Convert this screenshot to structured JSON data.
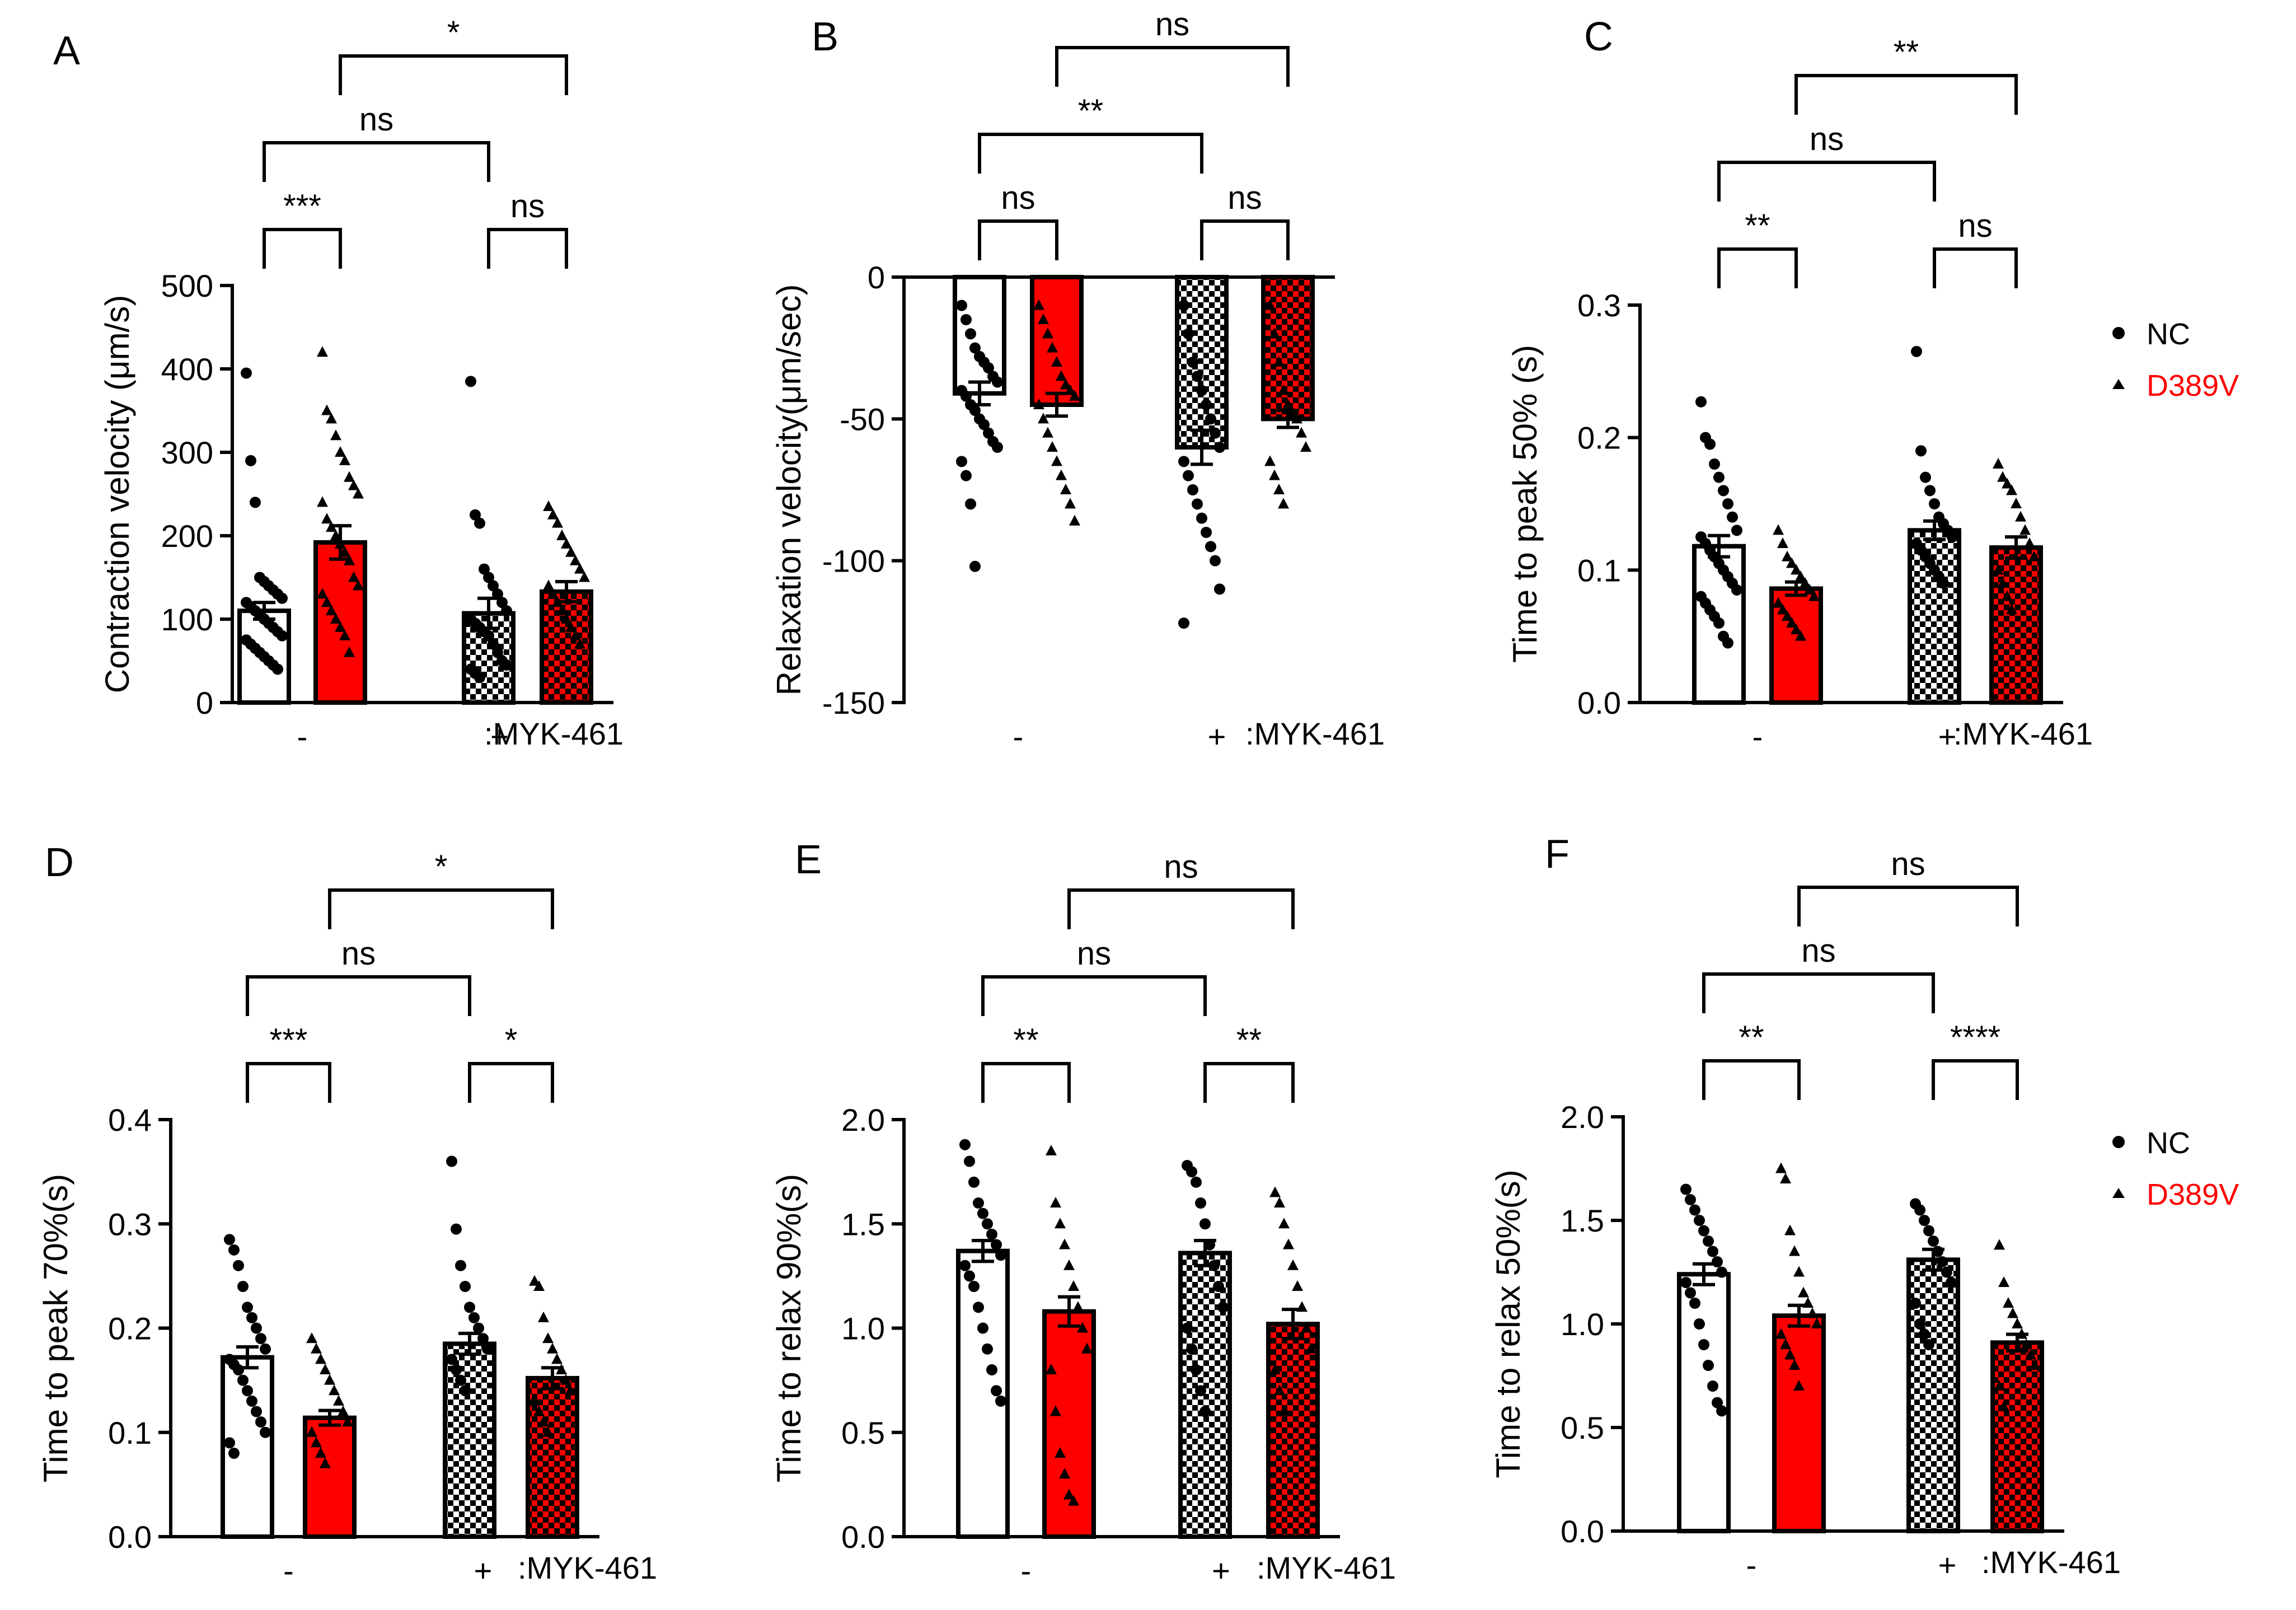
{
  "colors": {
    "nc": "#ffffff",
    "d389v": "#ff0000",
    "legend_d389v_text": "#ff0000",
    "axis": "#000000"
  },
  "legend": {
    "items": [
      {
        "label": "NC",
        "marker": "circle"
      },
      {
        "label": "D389V",
        "marker": "triangle"
      }
    ]
  },
  "chart_data": [
    {
      "panel": "A",
      "type": "bar",
      "ylabel": "Contraction velocity (μm/s)",
      "ylim": [
        0,
        500
      ],
      "yticks": [
        0,
        100,
        200,
        300,
        400,
        500
      ],
      "group_labels": [
        "-",
        "+"
      ],
      "treatment_label": ":MYK-461",
      "series": [
        {
          "name": "NC -",
          "mean": 110,
          "sem": 10,
          "color": "nc",
          "pattern": "solid"
        },
        {
          "name": "D389V -",
          "mean": 192,
          "sem": 20,
          "color": "d389v",
          "pattern": "solid"
        },
        {
          "name": "NC +",
          "mean": 107,
          "sem": 18,
          "color": "nc",
          "pattern": "check"
        },
        {
          "name": "D389V +",
          "mean": 133,
          "sem": 12,
          "color": "d389v",
          "pattern": "check"
        }
      ],
      "points": [
        [
          395,
          290,
          240,
          150,
          145,
          140,
          135,
          130,
          125,
          120,
          115,
          110,
          105,
          100,
          95,
          90,
          85,
          80,
          75,
          70,
          65,
          60,
          55,
          50,
          45,
          40
        ],
        [
          420,
          350,
          340,
          320,
          300,
          290,
          270,
          260,
          250,
          240,
          220,
          210,
          200,
          190,
          180,
          170,
          150,
          140,
          130,
          120,
          110,
          100,
          90,
          80,
          60
        ],
        [
          385,
          225,
          215,
          160,
          150,
          140,
          130,
          120,
          110,
          100,
          95,
          90,
          85,
          80,
          70,
          60,
          50,
          45,
          40,
          35,
          30
        ],
        [
          235,
          225,
          215,
          200,
          190,
          180,
          170,
          160,
          150,
          140,
          130,
          120,
          110,
          100,
          90,
          80,
          70
        ]
      ],
      "comparisons": [
        {
          "from": 0,
          "to": 1,
          "label": "***"
        },
        {
          "from": 2,
          "to": 3,
          "label": "ns"
        },
        {
          "from": 0,
          "to": 2,
          "label": "ns"
        },
        {
          "from": 1,
          "to": 3,
          "label": "*"
        }
      ]
    },
    {
      "panel": "B",
      "type": "bar",
      "ylabel": "Relaxation velocity(μm/sec)",
      "ylim": [
        -150,
        0
      ],
      "yticks": [
        -150,
        -100,
        -50,
        0
      ],
      "group_labels": [
        "-",
        "+"
      ],
      "treatment_label": ":MYK-461",
      "series": [
        {
          "name": "NC -",
          "mean": -41,
          "sem": 4,
          "color": "nc",
          "pattern": "solid"
        },
        {
          "name": "D389V -",
          "mean": -45,
          "sem": 4,
          "color": "d389v",
          "pattern": "solid"
        },
        {
          "name": "NC +",
          "mean": -60,
          "sem": 6,
          "color": "nc",
          "pattern": "check"
        },
        {
          "name": "D389V +",
          "mean": -50,
          "sem": 3,
          "color": "d389v",
          "pattern": "check"
        }
      ],
      "points": [
        [
          -10,
          -15,
          -20,
          -25,
          -28,
          -30,
          -32,
          -35,
          -37,
          -40,
          -42,
          -45,
          -47,
          -50,
          -52,
          -55,
          -58,
          -60,
          -65,
          -70,
          -80,
          -102
        ],
        [
          -10,
          -15,
          -20,
          -25,
          -30,
          -35,
          -38,
          -40,
          -42,
          -45,
          -50,
          -55,
          -60,
          -65,
          -70,
          -75,
          -80,
          -86
        ],
        [
          -10,
          -20,
          -30,
          -35,
          -40,
          -45,
          -50,
          -55,
          -60,
          -65,
          -70,
          -75,
          -80,
          -85,
          -90,
          -95,
          -100,
          -110,
          -122
        ],
        [
          -10,
          -20,
          -30,
          -40,
          -45,
          -48,
          -50,
          -55,
          -60,
          -65,
          -70,
          -75,
          -80
        ]
      ],
      "comparisons": [
        {
          "from": 0,
          "to": 1,
          "label": "ns"
        },
        {
          "from": 2,
          "to": 3,
          "label": "ns"
        },
        {
          "from": 0,
          "to": 2,
          "label": "**"
        },
        {
          "from": 1,
          "to": 3,
          "label": "ns"
        }
      ]
    },
    {
      "panel": "C",
      "type": "bar",
      "ylabel": "Time to peak 50% (s)",
      "ylim": [
        0,
        0.3
      ],
      "yticks": [
        0.0,
        0.1,
        0.2,
        0.3
      ],
      "tick_decimals": 1,
      "group_labels": [
        "-",
        "+"
      ],
      "treatment_label": ":MYK-461",
      "series": [
        {
          "name": "NC -",
          "mean": 0.118,
          "sem": 0.008,
          "color": "nc",
          "pattern": "solid"
        },
        {
          "name": "D389V -",
          "mean": 0.086,
          "sem": 0.005,
          "color": "d389v",
          "pattern": "solid"
        },
        {
          "name": "NC +",
          "mean": 0.13,
          "sem": 0.007,
          "color": "nc",
          "pattern": "check"
        },
        {
          "name": "D389V +",
          "mean": 0.117,
          "sem": 0.008,
          "color": "d389v",
          "pattern": "check"
        }
      ],
      "points": [
        [
          0.227,
          0.2,
          0.195,
          0.18,
          0.17,
          0.16,
          0.15,
          0.14,
          0.13,
          0.125,
          0.12,
          0.115,
          0.11,
          0.105,
          0.1,
          0.095,
          0.09,
          0.085,
          0.08,
          0.075,
          0.07,
          0.065,
          0.06,
          0.05,
          0.045
        ],
        [
          0.13,
          0.12,
          0.11,
          0.105,
          0.1,
          0.095,
          0.09,
          0.085,
          0.08,
          0.075,
          0.07,
          0.065,
          0.06,
          0.055,
          0.05
        ],
        [
          0.265,
          0.19,
          0.17,
          0.16,
          0.15,
          0.14,
          0.135,
          0.13,
          0.125,
          0.12,
          0.115,
          0.11,
          0.105,
          0.1,
          0.095,
          0.09
        ],
        [
          0.18,
          0.17,
          0.165,
          0.16,
          0.15,
          0.14,
          0.13,
          0.12,
          0.11,
          0.1,
          0.09,
          0.08,
          0.07
        ]
      ],
      "comparisons": [
        {
          "from": 0,
          "to": 1,
          "label": "**"
        },
        {
          "from": 2,
          "to": 3,
          "label": "ns"
        },
        {
          "from": 0,
          "to": 2,
          "label": "ns"
        },
        {
          "from": 1,
          "to": 3,
          "label": "**"
        }
      ]
    },
    {
      "panel": "D",
      "type": "bar",
      "ylabel": "Time to peak 70%(s)",
      "ylim": [
        0,
        0.4
      ],
      "yticks": [
        0.0,
        0.1,
        0.2,
        0.3,
        0.4
      ],
      "tick_decimals": 1,
      "group_labels": [
        "-",
        "+"
      ],
      "treatment_label": ":MYK-461",
      "series": [
        {
          "name": "NC -",
          "mean": 0.172,
          "sem": 0.01,
          "color": "nc",
          "pattern": "solid"
        },
        {
          "name": "D389V -",
          "mean": 0.114,
          "sem": 0.007,
          "color": "d389v",
          "pattern": "solid"
        },
        {
          "name": "NC +",
          "mean": 0.185,
          "sem": 0.01,
          "color": "nc",
          "pattern": "check"
        },
        {
          "name": "D389V +",
          "mean": 0.152,
          "sem": 0.01,
          "color": "d389v",
          "pattern": "check"
        }
      ],
      "points": [
        [
          0.285,
          0.275,
          0.26,
          0.24,
          0.22,
          0.21,
          0.2,
          0.19,
          0.18,
          0.17,
          0.165,
          0.16,
          0.15,
          0.14,
          0.13,
          0.12,
          0.11,
          0.1,
          0.09,
          0.08
        ],
        [
          0.19,
          0.18,
          0.17,
          0.16,
          0.15,
          0.14,
          0.13,
          0.12,
          0.11,
          0.1,
          0.09,
          0.08,
          0.07
        ],
        [
          0.36,
          0.295,
          0.26,
          0.24,
          0.22,
          0.21,
          0.2,
          0.19,
          0.18,
          0.17,
          0.16,
          0.15,
          0.14
        ],
        [
          0.245,
          0.24,
          0.21,
          0.19,
          0.18,
          0.17,
          0.16,
          0.15,
          0.14,
          0.13,
          0.12,
          0.11,
          0.1
        ]
      ],
      "comparisons": [
        {
          "from": 0,
          "to": 1,
          "label": "***"
        },
        {
          "from": 2,
          "to": 3,
          "label": "*"
        },
        {
          "from": 0,
          "to": 2,
          "label": "ns"
        },
        {
          "from": 1,
          "to": 3,
          "label": "*"
        }
      ]
    },
    {
      "panel": "E",
      "type": "bar",
      "ylabel": "Time to relax 90%(s)",
      "ylim": [
        0,
        2.0
      ],
      "yticks": [
        0.0,
        0.5,
        1.0,
        1.5,
        2.0
      ],
      "tick_decimals": 1,
      "group_labels": [
        "-",
        "+"
      ],
      "treatment_label": ":MYK-461",
      "series": [
        {
          "name": "NC -",
          "mean": 1.37,
          "sem": 0.05,
          "color": "nc",
          "pattern": "solid"
        },
        {
          "name": "D389V -",
          "mean": 1.08,
          "sem": 0.07,
          "color": "d389v",
          "pattern": "solid"
        },
        {
          "name": "NC +",
          "mean": 1.36,
          "sem": 0.06,
          "color": "nc",
          "pattern": "check"
        },
        {
          "name": "D389V +",
          "mean": 1.02,
          "sem": 0.07,
          "color": "d389v",
          "pattern": "check"
        }
      ],
      "points": [
        [
          1.88,
          1.8,
          1.7,
          1.6,
          1.55,
          1.5,
          1.45,
          1.4,
          1.35,
          1.3,
          1.25,
          1.2,
          1.1,
          1.0,
          0.9,
          0.8,
          0.7,
          0.65
        ],
        [
          1.85,
          1.6,
          1.5,
          1.4,
          1.3,
          1.2,
          1.1,
          1.0,
          0.9,
          0.8,
          0.6,
          0.4,
          0.3,
          0.2,
          0.17
        ],
        [
          1.78,
          1.75,
          1.7,
          1.6,
          1.5,
          1.4,
          1.3,
          1.2,
          1.1,
          1.0,
          0.9,
          0.8,
          0.7,
          0.6
        ],
        [
          1.65,
          1.6,
          1.5,
          1.4,
          1.3,
          1.2,
          1.1,
          1.0,
          0.9,
          0.8,
          0.7,
          0.6
        ]
      ],
      "comparisons": [
        {
          "from": 0,
          "to": 1,
          "label": "**"
        },
        {
          "from": 2,
          "to": 3,
          "label": "**"
        },
        {
          "from": 0,
          "to": 2,
          "label": "ns"
        },
        {
          "from": 1,
          "to": 3,
          "label": "ns"
        }
      ]
    },
    {
      "panel": "F",
      "type": "bar",
      "ylabel": "Time to relax 50%(s)",
      "ylim": [
        0,
        2.0
      ],
      "yticks": [
        0.0,
        0.5,
        1.0,
        1.5,
        2.0
      ],
      "tick_decimals": 1,
      "group_labels": [
        "-",
        "+"
      ],
      "treatment_label": ":MYK-461",
      "series": [
        {
          "name": "NC -",
          "mean": 1.24,
          "sem": 0.05,
          "color": "nc",
          "pattern": "solid"
        },
        {
          "name": "D389V -",
          "mean": 1.04,
          "sem": 0.05,
          "color": "d389v",
          "pattern": "solid"
        },
        {
          "name": "NC +",
          "mean": 1.31,
          "sem": 0.05,
          "color": "nc",
          "pattern": "check"
        },
        {
          "name": "D389V +",
          "mean": 0.91,
          "sem": 0.04,
          "color": "d389v",
          "pattern": "check"
        }
      ],
      "points": [
        [
          1.65,
          1.6,
          1.55,
          1.5,
          1.45,
          1.4,
          1.35,
          1.3,
          1.25,
          1.2,
          1.15,
          1.1,
          1.0,
          0.9,
          0.8,
          0.7,
          0.62,
          0.58
        ],
        [
          1.75,
          1.7,
          1.45,
          1.35,
          1.25,
          1.15,
          1.1,
          1.05,
          1.0,
          0.95,
          0.9,
          0.85,
          0.8,
          0.7
        ],
        [
          1.58,
          1.55,
          1.5,
          1.45,
          1.4,
          1.35,
          1.3,
          1.25,
          1.2,
          1.1,
          1.0,
          0.95,
          0.9
        ],
        [
          1.38,
          1.2,
          1.1,
          1.05,
          1.0,
          0.95,
          0.9,
          0.85,
          0.8,
          0.7,
          0.6
        ]
      ],
      "comparisons": [
        {
          "from": 0,
          "to": 1,
          "label": "**"
        },
        {
          "from": 2,
          "to": 3,
          "label": "****"
        },
        {
          "from": 0,
          "to": 2,
          "label": "ns"
        },
        {
          "from": 1,
          "to": 3,
          "label": "ns"
        }
      ]
    }
  ]
}
